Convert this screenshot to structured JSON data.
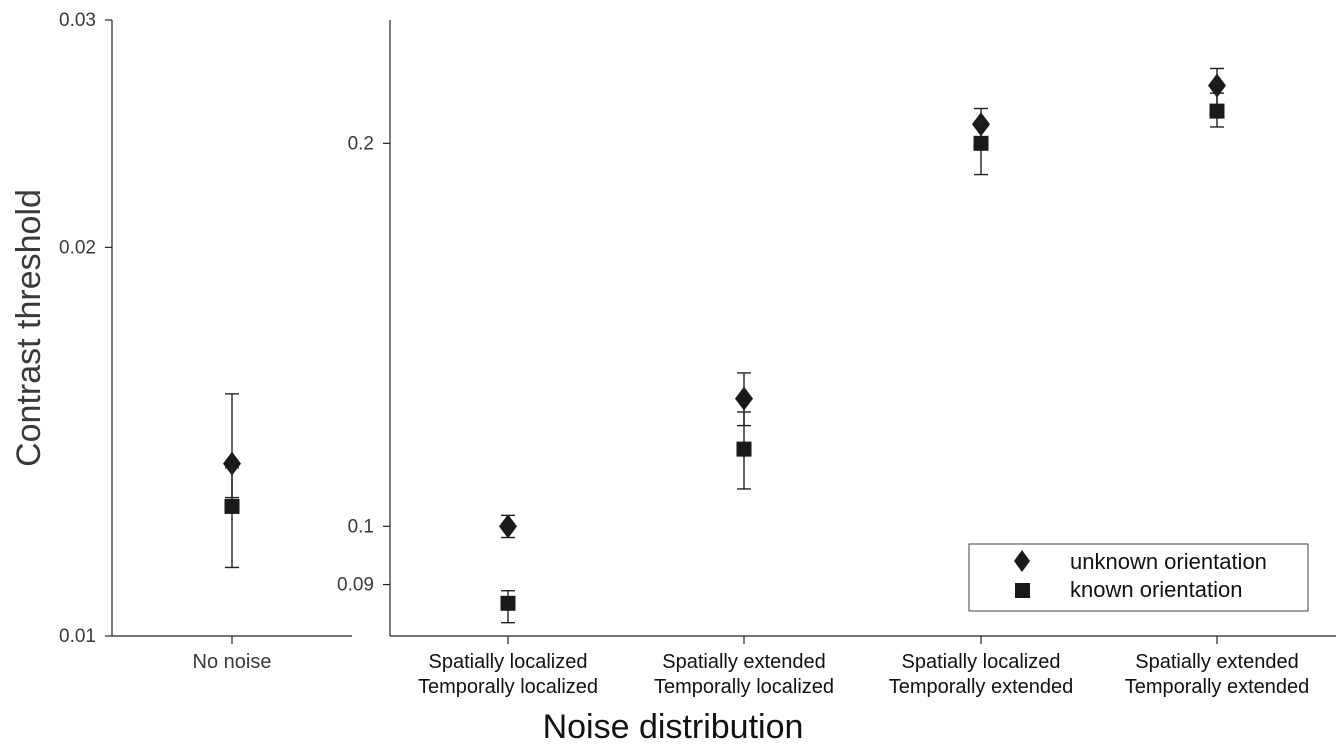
{
  "chart_data": [
    {
      "type": "scatter",
      "ylabel": "Contrast threshold",
      "xlabel": "",
      "y_scale": "log",
      "ylim": [
        0.01,
        0.03
      ],
      "yticks": [
        0.01,
        0.02,
        0.03
      ],
      "ytick_labels": [
        "0.01",
        "0.02",
        "0.03"
      ],
      "categories": [
        "No noise"
      ],
      "series": [
        {
          "name": "unknown orientation",
          "marker": "diamond",
          "values": [
            0.0136
          ],
          "err_low": [
            0.0128
          ],
          "err_high": [
            0.0154
          ]
        },
        {
          "name": "known orientation",
          "marker": "square",
          "values": [
            0.0126
          ],
          "err_low": [
            0.0113
          ],
          "err_high": [
            0.0135
          ]
        }
      ]
    },
    {
      "type": "scatter",
      "xlabel": "Noise distribution",
      "ylabel": "",
      "y_scale": "log",
      "ylim": [
        0.082,
        0.25
      ],
      "yticks": [
        0.09,
        0.1,
        0.2
      ],
      "ytick_labels": [
        "0.09",
        "0.1",
        "0.2"
      ],
      "categories": [
        [
          "Spatially localized",
          "Temporally localized"
        ],
        [
          "Spatially extended",
          "Temporally localized"
        ],
        [
          "Spatially localized",
          "Temporally extended"
        ],
        [
          "Spatially extended",
          "Temporally extended"
        ]
      ],
      "series": [
        {
          "name": "unknown orientation",
          "marker": "diamond",
          "values": [
            0.1,
            0.126,
            0.207,
            0.222
          ],
          "err_low": [
            0.098,
            0.12,
            0.201,
            0.214
          ],
          "err_high": [
            0.102,
            0.132,
            0.213,
            0.229
          ]
        },
        {
          "name": "known orientation",
          "marker": "square",
          "values": [
            0.087,
            0.115,
            0.2,
            0.212
          ],
          "err_low": [
            0.084,
            0.107,
            0.189,
            0.206
          ],
          "err_high": [
            0.089,
            0.123,
            0.208,
            0.219
          ]
        }
      ],
      "legend": "bottom-right"
    }
  ],
  "colors": {
    "marker": "#1a1a1a",
    "axis": "#222222",
    "text": "#3a3a3a"
  }
}
